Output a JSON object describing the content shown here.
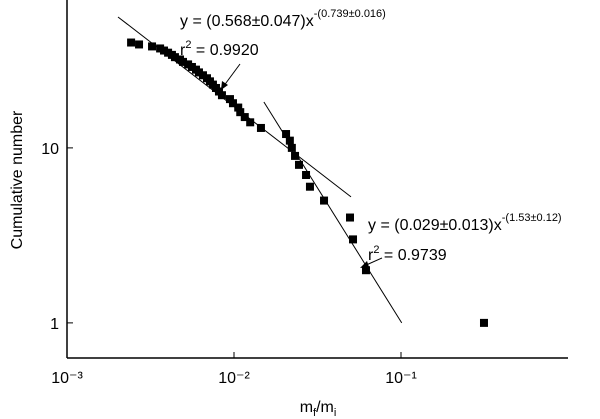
{
  "chart_data": {
    "type": "scatter",
    "ylabel": "Cumulative number",
    "xlabel_parts": [
      "m",
      "f",
      "/m",
      "i"
    ],
    "xscale": "log",
    "yscale": "log",
    "xlim": [
      0.001,
      1
    ],
    "ylim": [
      0.63,
      70
    ],
    "xticks": [
      {
        "value": 0.001,
        "label": "10⁻³"
      },
      {
        "value": 0.01,
        "label": "10⁻²"
      },
      {
        "value": 0.1,
        "label": "10⁻¹"
      }
    ],
    "yticks": [
      1,
      10
    ],
    "color": "#000000",
    "x": [
      0.00242,
      0.0027,
      0.00323,
      0.00361,
      0.00381,
      0.00403,
      0.00425,
      0.00443,
      0.00475,
      0.00495,
      0.00531,
      0.0056,
      0.00592,
      0.00617,
      0.00652,
      0.00689,
      0.00718,
      0.00748,
      0.0078,
      0.00813,
      0.00847,
      0.00946,
      0.00986,
      0.0106,
      0.0109,
      0.0116,
      0.0125,
      0.0145,
      0.0205,
      0.0216,
      0.0222,
      0.0232,
      0.0245,
      0.027,
      0.0285,
      0.0346,
      0.0495,
      0.0516,
      0.0617,
      0.314
    ],
    "values": [
      40,
      39,
      38,
      37,
      36,
      35,
      34,
      33,
      32,
      31,
      30,
      29,
      28,
      27,
      26,
      25,
      24,
      23,
      22,
      21,
      20,
      19,
      18,
      17,
      16,
      15,
      14,
      13,
      12,
      11,
      10,
      9,
      8,
      7,
      6,
      5,
      4,
      3,
      2,
      1
    ],
    "fits": [
      {
        "x": [
          0.00202,
          0.0502
        ],
        "values": [
          56,
          5.25
        ],
        "equation": "y = (0.568±0.047)x",
        "exponent": "-(0.739±0.016)",
        "r_label": "r",
        "r_sup": "2",
        "r_value": " = 0.9920"
      },
      {
        "x": [
          0.0151,
          0.101
        ],
        "values": [
          18.3,
          1
        ],
        "equation": "y = (0.029±0.013)x",
        "exponent": "-(1.53±0.12)",
        "r_label": "r",
        "r_sup": "2",
        "r_value": " = 0.9739"
      }
    ]
  }
}
